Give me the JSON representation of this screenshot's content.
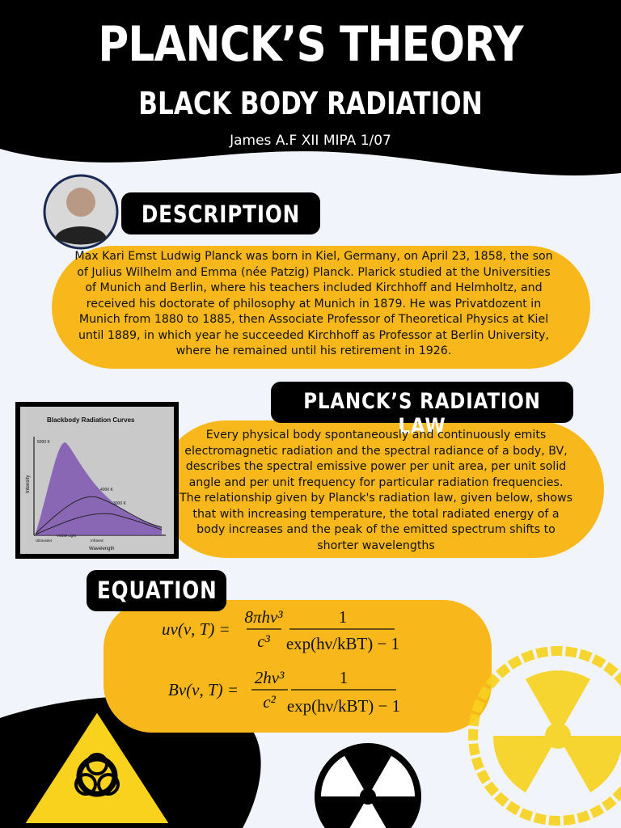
{
  "header": {
    "title": "PLANCK’S THEORY",
    "subtitle": "BLACK BODY RADIATION",
    "author": "James A.F XII MIPA 1/07"
  },
  "description": {
    "heading": "DESCRIPTION",
    "text": "Max Kari Emst Ludwig Planck was born in Kiel, Germany, on April 23, 1858, the son of Julius Wilhelm and Emma (née Patzig) Planck. Plarick studied at the Universities of Munich and Berlin, where his teachers included Kirchhoff and Helmholtz, and received his doctorate of philosophy at Munich in 1879. He was Privatdozent in Munich from 1880 to 1885, then Associate Professor of Theoretical Physics at Kiel until 1889, in which year he succeeded Kirchhoff as Professor at Berlin University, where he remained until his retirement in 1926."
  },
  "radiation_law": {
    "heading": "PLANCK’S RADIATION LAW",
    "text": "Every physical body spontaneously and continuously emits electromagnetic radiation and the spectral radiance of a body, BV, describes the spectral emissive power per unit area, per unit solid angle and per unit frequency for particular radiation frequencies. The relationship given by Planck's radiation law, given below, shows that with increasing temperature, the total radiated energy of a body increases and the peak of the emitted spectrum shifts to shorter wavelengths",
    "figure": {
      "title": "Blackbody Radiation Curves",
      "y_label": "Intensity",
      "x_label": "Wavelength",
      "labels": [
        "5000 K",
        "4000 K",
        "3000 K",
        "Ultraviolet",
        "Visible Light",
        "Infrared"
      ]
    }
  },
  "equation": {
    "heading": "EQUATION",
    "equations": [
      {
        "lhs": "uν(ν, T) =",
        "numerator": "8πhν³",
        "denominator": "c³",
        "fraction_numerator": "1",
        "fraction_denominator": "exp(hν/kBT) − 1"
      },
      {
        "lhs": "Bν(ν, T) =",
        "numerator": "2hν³",
        "denominator": "c²",
        "fraction_numerator": "1",
        "fraction_denominator": "exp(hν/kBT) − 1"
      }
    ]
  }
}
